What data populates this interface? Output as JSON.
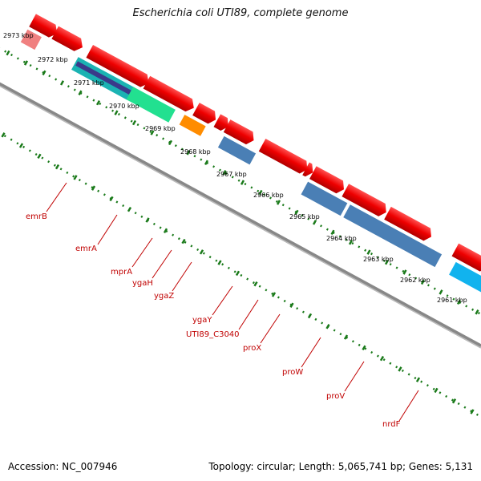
{
  "title": "Escherichia coli UTI89, complete genome",
  "footer": {
    "accession": "Accession: NC_007946",
    "topology": "Topology: circular; Length: 5,065,741 bp; Genes: 5,131"
  },
  "colors": {
    "backbone": "#888888",
    "cds": "#ee1111",
    "cds_faded": "#f08080",
    "ruler": "#1a7a1a",
    "label": "#c00000",
    "emrB": "#1bb3b3",
    "emrA": "#22e090",
    "mprA": "#ff8c00",
    "steelblue": "#4a7fb5",
    "nrdF": "#11b3ee"
  },
  "ruler_labels": [
    "2973 kbp",
    "2972 kbp",
    "2971 kbp",
    "2970 kbp",
    "2969 kbp",
    "2968 kbp",
    "2967 kbp",
    "2966 kbp",
    "2965 kbp",
    "2964 kbp",
    "2963 kbp",
    "2962 kbp",
    "2961 kbp"
  ],
  "gene_labels": [
    "emrB",
    "emrA",
    "mprA",
    "ygaH",
    "ygaZ",
    "ygaY",
    "UTI89_C3040",
    "proX",
    "proW",
    "proV",
    "nrdF"
  ]
}
